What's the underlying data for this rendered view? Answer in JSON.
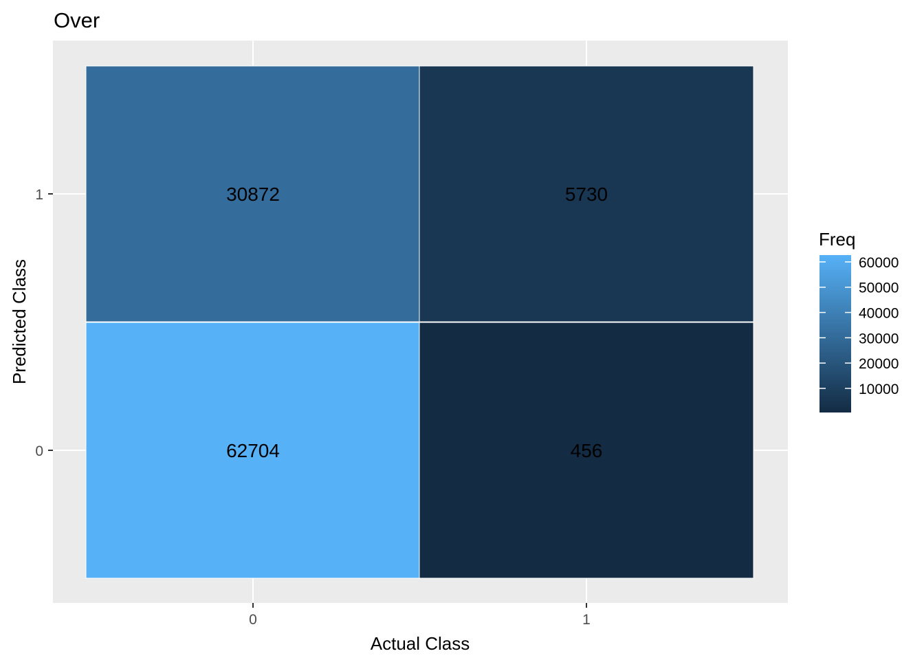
{
  "chart_data": {
    "type": "heatmap",
    "title": "Over",
    "xlabel": "Actual Class",
    "ylabel": "Predicted Class",
    "x_categories": [
      "0",
      "1"
    ],
    "y_categories": [
      "0",
      "1"
    ],
    "cells": [
      {
        "actual": "0",
        "predicted": "0",
        "freq": 62704
      },
      {
        "actual": "1",
        "predicted": "0",
        "freq": 456
      },
      {
        "actual": "0",
        "predicted": "1",
        "freq": 30872
      },
      {
        "actual": "1",
        "predicted": "1",
        "freq": 5730
      }
    ],
    "legend": {
      "title": "Freq",
      "ticks": [
        10000,
        20000,
        30000,
        40000,
        50000,
        60000
      ],
      "labels": [
        "10000",
        "20000",
        "30000",
        "40000",
        "50000",
        "60000"
      ],
      "range": [
        456,
        62704
      ],
      "low_color": "#132b43",
      "high_color": "#56b1f7",
      "placement": "right"
    },
    "grid": true,
    "panel_background": "#ebebeb",
    "grid_color": "#ffffff"
  }
}
